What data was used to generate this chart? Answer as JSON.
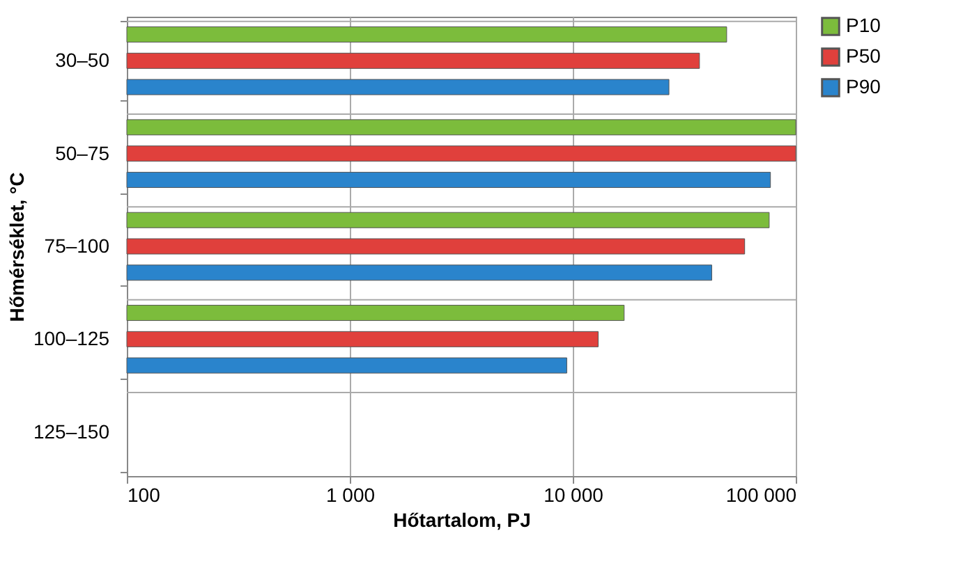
{
  "chart_data": {
    "type": "bar",
    "orientation": "horizontal",
    "xlabel": "Hőtartalom, PJ",
    "ylabel": "Hőmérséklet, °C",
    "categories": [
      "30–50",
      "50–75",
      "75–100",
      "100–125",
      "125–150"
    ],
    "series": [
      {
        "name": "P10",
        "color": "#7cbc3c",
        "values": [
          49000,
          100000,
          76000,
          17000,
          null
        ]
      },
      {
        "name": "P50",
        "color": "#e0403c",
        "values": [
          37000,
          100000,
          59000,
          13000,
          null
        ]
      },
      {
        "name": "P90",
        "color": "#2a84cc",
        "values": [
          27000,
          77000,
          42000,
          9400,
          null
        ]
      }
    ],
    "log": "x",
    "xlim": [
      100,
      100000
    ],
    "xticks": [
      {
        "value": 100,
        "label": "100"
      },
      {
        "value": 1000,
        "label": "1 000"
      },
      {
        "value": 10000,
        "label": "10 000"
      },
      {
        "value": 100000,
        "label": "100 000"
      }
    ],
    "grid": true,
    "legend": "right"
  }
}
